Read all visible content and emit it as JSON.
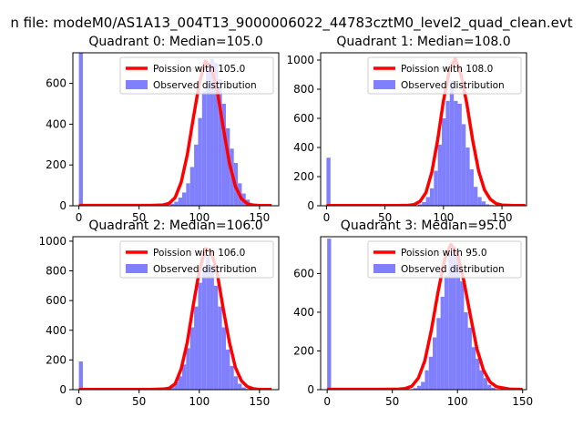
{
  "figure": {
    "suptitle": "n file: modeM0/AS1A13_004T13_9000006022_44783cztM0_level2_quad_clean.evt"
  },
  "colors": {
    "hist": "#8080ff",
    "poisson": "#ff0000"
  },
  "chart_data": [
    {
      "type": "bar",
      "title": "Quadrant 0: Median=105.0",
      "xlim": [
        -5,
        166
      ],
      "ylim": [
        0,
        750
      ],
      "xticks": [
        0,
        50,
        100,
        150
      ],
      "yticks": [
        0,
        200,
        400,
        600
      ],
      "legend_position": "top-right",
      "legend": [
        {
          "kind": "line",
          "label": "Poission with 105.0"
        },
        {
          "kind": "patch",
          "label": "Observed distribution"
        }
      ],
      "hist": {
        "bin_start": 0,
        "bin_width": 3.3,
        "counts": [
          780,
          0,
          0,
          0,
          0,
          0,
          0,
          0,
          0,
          0,
          0,
          0,
          0,
          0,
          0,
          0,
          0,
          0,
          0,
          0,
          0,
          2,
          3,
          10,
          20,
          40,
          65,
          110,
          190,
          300,
          430,
          560,
          690,
          720,
          700,
          620,
          500,
          380,
          280,
          210,
          110,
          60,
          30,
          10,
          2,
          1,
          0,
          0,
          0,
          0
        ]
      },
      "poisson": {
        "mean": 105.0,
        "x": [
          0,
          20,
          40,
          60,
          70,
          75,
          80,
          85,
          90,
          95,
          100,
          105,
          110,
          115,
          120,
          125,
          130,
          135,
          140,
          145,
          150,
          160
        ],
        "y": [
          2,
          2,
          2,
          2,
          4,
          12,
          40,
          115,
          250,
          430,
          600,
          710,
          680,
          560,
          380,
          210,
          95,
          35,
          10,
          3,
          1,
          1
        ]
      }
    },
    {
      "type": "bar",
      "title": "Quadrant 1: Median=108.0",
      "xlim": [
        -5,
        171
      ],
      "ylim": [
        0,
        1050
      ],
      "xticks": [
        0,
        50,
        100,
        150
      ],
      "yticks": [
        0,
        200,
        400,
        600,
        800,
        1000
      ],
      "legend_position": "top-right",
      "legend": [
        {
          "kind": "line",
          "label": "Poission with 108.0"
        },
        {
          "kind": "patch",
          "label": "Observed distribution"
        }
      ],
      "hist": {
        "bin_start": 0,
        "bin_width": 3.4,
        "counts": [
          330,
          0,
          0,
          0,
          0,
          0,
          0,
          0,
          0,
          0,
          0,
          0,
          0,
          0,
          0,
          0,
          0,
          0,
          0,
          0,
          0,
          0,
          3,
          10,
          25,
          60,
          120,
          240,
          420,
          600,
          720,
          860,
          720,
          700,
          560,
          400,
          250,
          130,
          60,
          30,
          10,
          5,
          2,
          0,
          0,
          0,
          0,
          0,
          0,
          0
        ]
      },
      "poisson": {
        "mean": 108.0,
        "x": [
          0,
          20,
          40,
          60,
          70,
          75,
          80,
          85,
          90,
          95,
          100,
          105,
          110,
          115,
          120,
          125,
          130,
          135,
          140,
          145,
          150,
          160,
          170
        ],
        "y": [
          2,
          2,
          2,
          2,
          3,
          8,
          30,
          90,
          230,
          450,
          720,
          930,
          1010,
          900,
          700,
          450,
          240,
          110,
          45,
          15,
          5,
          2,
          1
        ]
      }
    },
    {
      "type": "bar",
      "title": "Quadrant 2: Median=106.0",
      "xlim": [
        -5,
        166
      ],
      "ylim": [
        0,
        1030
      ],
      "xticks": [
        0,
        50,
        100,
        150
      ],
      "yticks": [
        0,
        200,
        400,
        600,
        800,
        1000
      ],
      "legend_position": "top-right",
      "legend": [
        {
          "kind": "line",
          "label": "Poission with 106.0"
        },
        {
          "kind": "patch",
          "label": "Observed distribution"
        }
      ],
      "hist": {
        "bin_start": 0,
        "bin_width": 3.3,
        "counts": [
          190,
          0,
          0,
          0,
          0,
          0,
          0,
          0,
          0,
          0,
          0,
          0,
          0,
          0,
          0,
          0,
          0,
          0,
          0,
          0,
          2,
          5,
          12,
          25,
          50,
          90,
          170,
          280,
          420,
          560,
          720,
          820,
          900,
          840,
          700,
          560,
          420,
          270,
          160,
          90,
          40,
          15,
          5,
          2,
          0,
          0,
          0,
          0,
          0,
          0
        ]
      },
      "poisson": {
        "mean": 106.0,
        "x": [
          0,
          20,
          40,
          60,
          70,
          75,
          80,
          85,
          90,
          95,
          100,
          105,
          110,
          115,
          120,
          125,
          130,
          135,
          140,
          145,
          150,
          160
        ],
        "y": [
          2,
          2,
          2,
          2,
          4,
          10,
          40,
          140,
          320,
          570,
          800,
          950,
          930,
          780,
          540,
          320,
          150,
          60,
          20,
          6,
          2,
          1
        ]
      }
    },
    {
      "type": "bar",
      "title": "Quadrant 3: Median=95.0",
      "xlim": [
        -5,
        153
      ],
      "ylim": [
        0,
        790
      ],
      "xticks": [
        0,
        50,
        100,
        150
      ],
      "yticks": [
        0,
        200,
        400,
        600
      ],
      "legend_position": "top-right",
      "legend": [
        {
          "kind": "line",
          "label": "Poission with 95.0"
        },
        {
          "kind": "patch",
          "label": "Observed distribution"
        }
      ],
      "hist": {
        "bin_start": 0,
        "bin_width": 3.0,
        "counts": [
          780,
          0,
          0,
          0,
          0,
          0,
          0,
          0,
          0,
          0,
          0,
          0,
          0,
          0,
          0,
          0,
          0,
          0,
          0,
          0,
          0,
          2,
          8,
          20,
          40,
          100,
          170,
          270,
          370,
          480,
          590,
          700,
          740,
          680,
          560,
          400,
          320,
          220,
          160,
          100,
          60,
          25,
          10,
          3,
          1,
          0,
          0,
          0,
          0,
          0
        ]
      },
      "poisson": {
        "mean": 95.0,
        "x": [
          0,
          20,
          40,
          55,
          60,
          65,
          70,
          75,
          80,
          85,
          90,
          95,
          100,
          105,
          110,
          115,
          120,
          125,
          130,
          140,
          150
        ],
        "y": [
          2,
          2,
          2,
          3,
          6,
          18,
          60,
          150,
          310,
          500,
          670,
          750,
          700,
          560,
          380,
          210,
          100,
          40,
          15,
          3,
          1
        ]
      }
    }
  ]
}
